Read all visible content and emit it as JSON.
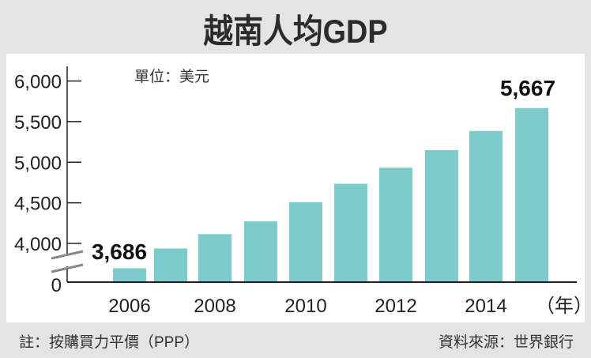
{
  "chart_data": {
    "type": "bar",
    "title": "越南人均GDP",
    "unit_label": "單位：美元",
    "categories": [
      "2006",
      "2007",
      "2008",
      "2009",
      "2010",
      "2011",
      "2012",
      "2013",
      "2014",
      "2015"
    ],
    "values": [
      3686,
      3935,
      4114,
      4272,
      4508,
      4735,
      4932,
      5149,
      5385,
      5667
    ],
    "x_tick_labels": [
      "2006",
      "2008",
      "2010",
      "2012",
      "2014"
    ],
    "x_unit": "（年）",
    "y_tick_labels": [
      "0",
      "4,000",
      "4,500",
      "5,000",
      "5,500",
      "6,000"
    ],
    "y_axis_break": true,
    "ylim": [
      0,
      6000
    ],
    "data_labels": [
      {
        "category": "2006",
        "text": "3,686"
      },
      {
        "category": "2015",
        "text": "5,667"
      }
    ],
    "bar_color": "#7ecbcb",
    "grid": false
  },
  "footer": {
    "note": "註：按購買力平價（PPP）",
    "source": "資料來源：世界銀行"
  }
}
